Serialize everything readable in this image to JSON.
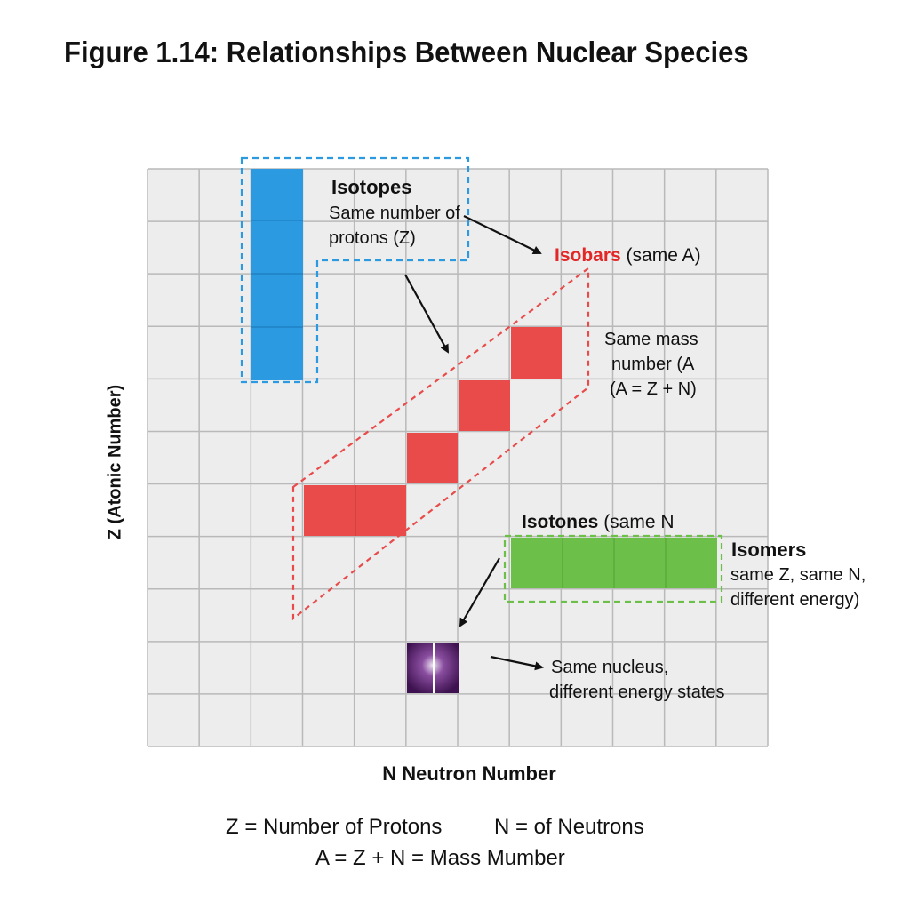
{
  "title": "Figure 1.14: Relationships Between Nuclear Species",
  "axes": {
    "y_label": "Z (Atonic Number)",
    "x_label": "N Neutron Number"
  },
  "annotations": {
    "isotopes": {
      "heading": "Isotopes",
      "line1": "Same number of",
      "line2": "protons (Z)"
    },
    "isobars": {
      "heading": "Isobars",
      "suffix": " (same A)",
      "desc1": "Same mass",
      "desc2": "number (A",
      "desc3": "(A = Z + N)"
    },
    "isotones": {
      "heading": "Isotones",
      "suffix": " (same N"
    },
    "isomers": {
      "heading": "Isomers",
      "line1": "same Z, same N,",
      "line2": "different energy)"
    },
    "nucleus": {
      "line1": "Same nucleus,",
      "line2": "different energy states"
    }
  },
  "legend": {
    "z_def": "Z = Number of Protons",
    "n_def": "N = of Neutrons",
    "a_def": "A = Z + N = Mass Mumber"
  },
  "colors": {
    "isotopes": "#2b9ae0",
    "isobars": "#e94a4a",
    "isotones": "#6cc04a",
    "isomers": "#5b1f6e",
    "isobars_text": "#e32626",
    "grid_bg": "#ededed",
    "grid_line": "#b9b9b9"
  }
}
